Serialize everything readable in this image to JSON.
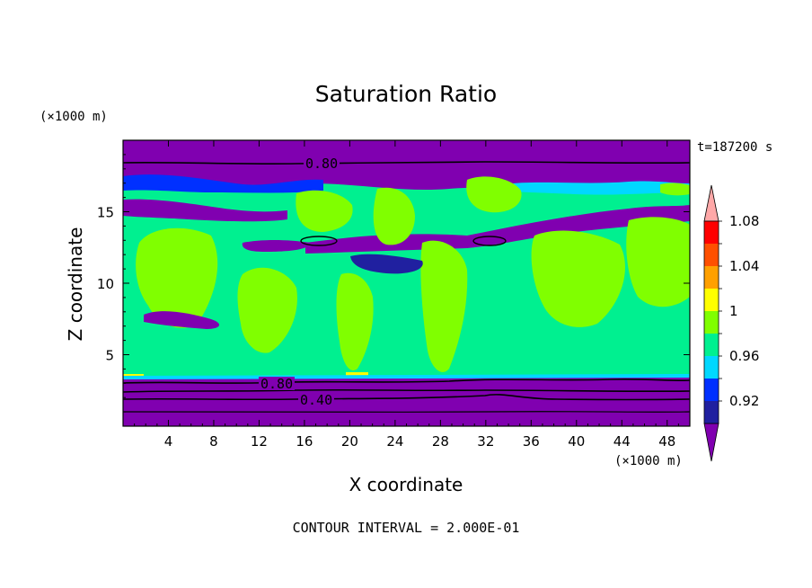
{
  "chart_data": {
    "type": "heatmap",
    "title": "Saturation Ratio",
    "xlabel": "X coordinate",
    "ylabel": "Z coordinate",
    "x_unit": "(×1000 m)",
    "y_unit": "(×1000 m)",
    "xlim": [
      0,
      50
    ],
    "ylim": [
      0,
      20
    ],
    "x_ticks": [
      4,
      8,
      12,
      16,
      20,
      24,
      28,
      32,
      36,
      40,
      44,
      48
    ],
    "y_ticks": [
      5,
      10,
      15
    ],
    "time_label": "t=187200 s",
    "contour_interval_label": "CONTOUR INTERVAL = 2.000E-01",
    "contour_labels": [
      "0.80",
      "0.80",
      "0.40"
    ],
    "colorbar": {
      "levels": [
        0.92,
        0.94,
        0.96,
        0.98,
        1.0,
        1.02,
        1.04,
        1.06,
        1.08
      ],
      "tick_labels": [
        "0.92",
        "0.96",
        "1",
        "1.04",
        "1.08"
      ],
      "colors": [
        "#8000b0",
        "#2020a0",
        "#0030ff",
        "#00d8ff",
        "#00f090",
        "#80ff00",
        "#ffff00",
        "#ffa000",
        "#ff5000",
        "#ff0000",
        "#ffa8a8"
      ]
    },
    "legend": "colorbar-right",
    "grid": false
  }
}
